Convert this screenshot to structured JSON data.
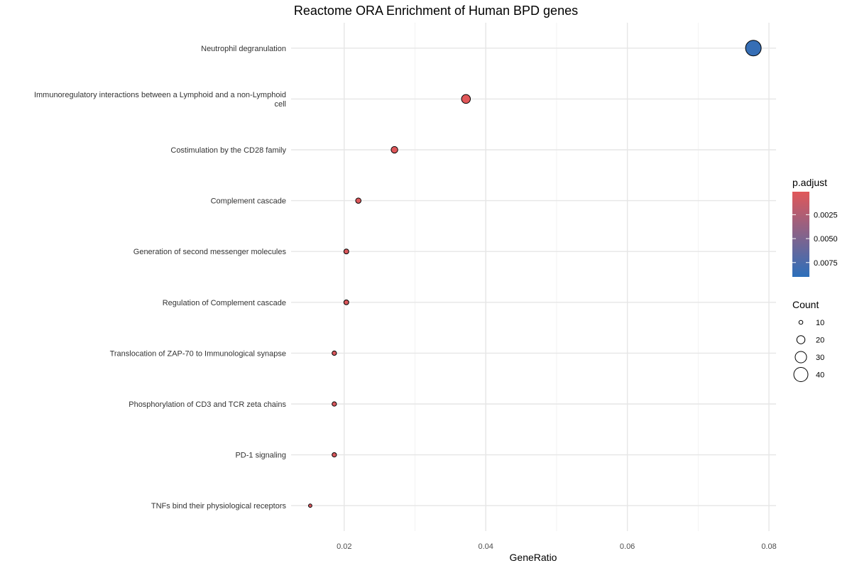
{
  "chart_data": {
    "type": "scatter",
    "title": "Reactome ORA Enrichment of Human BPD genes",
    "xlabel": "GeneRatio",
    "ylabel": "",
    "xlim": [
      0.0125,
      0.081
    ],
    "xticks": [
      "0.02",
      "0.04",
      "0.06",
      "0.08"
    ],
    "xtick_values": [
      0.02,
      0.04,
      0.06,
      0.08
    ],
    "grid": true,
    "legend_position": "right",
    "categories": [
      "Neutrophil degranulation",
      "Immunoregulatory interactions between a Lymphoid and a non-Lymphoid cell",
      "Costimulation by the CD28 family",
      "Complement cascade",
      "Generation of second messenger molecules",
      "Regulation of Complement cascade",
      "Translocation of ZAP-70 to Immunological synapse",
      "Phosphorylation of CD3 and TCR zeta chains",
      "PD-1 signaling",
      "TNFs bind their physiological receptors"
    ],
    "category_lines": [
      [
        "Neutrophil degranulation"
      ],
      [
        "Immunoregulatory interactions between a Lymphoid and a non-Lymphoid",
        "cell"
      ],
      [
        "Costimulation by the CD28 family"
      ],
      [
        "Complement cascade"
      ],
      [
        "Generation of second messenger molecules"
      ],
      [
        "Regulation of Complement cascade"
      ],
      [
        "Translocation of ZAP-70 to Immunological synapse"
      ],
      [
        "Phosphorylation of CD3 and TCR zeta chains"
      ],
      [
        "PD-1 signaling"
      ],
      [
        "TNFs bind their physiological receptors"
      ]
    ],
    "gene_ratio": [
      0.0778,
      0.0372,
      0.0271,
      0.022,
      0.0203,
      0.0203,
      0.0186,
      0.0186,
      0.0186,
      0.0152
    ],
    "count": [
      46,
      22,
      16,
      13,
      12,
      12,
      11,
      11,
      11,
      9
    ],
    "p_adjust": [
      0.0085,
      0.0001,
      0.0002,
      0.0003,
      0.0004,
      0.0004,
      0.0005,
      0.0005,
      0.0005,
      0.0006
    ],
    "color_legend": {
      "title": "p.adjust",
      "labels": [
        "0.0025",
        "0.0050",
        "0.0075"
      ],
      "values": [
        0.0025,
        0.005,
        0.0075
      ],
      "range": [
        0.0001,
        0.009
      ],
      "low_color": "#e15759",
      "high_color": "#2c6fbb"
    },
    "size_legend": {
      "title": "Count",
      "labels": [
        "10",
        "20",
        "30",
        "40"
      ],
      "values": [
        10,
        20,
        30,
        40
      ]
    }
  }
}
